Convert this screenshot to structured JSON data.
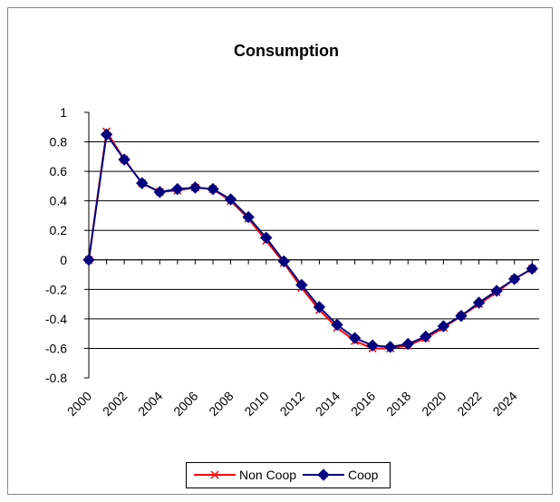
{
  "chart_data": {
    "type": "line",
    "title": "Consumption",
    "categories": [
      "2000",
      null,
      "2002",
      null,
      "2004",
      null,
      "2006",
      null,
      "2008",
      null,
      "2010",
      null,
      "2012",
      null,
      "2014",
      null,
      "2016",
      null,
      "2018",
      null,
      "2020",
      null,
      "2022",
      null,
      "2024",
      null
    ],
    "series": [
      {
        "name": "Non Coop",
        "color": "#ff0000",
        "marker": "x",
        "values": [
          0,
          0.87,
          0.68,
          0.52,
          0.46,
          0.47,
          0.49,
          0.48,
          0.4,
          0.28,
          0.13,
          -0.02,
          -0.19,
          -0.34,
          -0.46,
          -0.55,
          -0.6,
          -0.6,
          -0.58,
          -0.53,
          -0.46,
          -0.38,
          -0.3,
          -0.22,
          -0.13,
          -0.06
        ]
      },
      {
        "name": "Coop",
        "color": "#000080",
        "marker": "diamond",
        "values": [
          0,
          0.85,
          0.68,
          0.52,
          0.46,
          0.48,
          0.49,
          0.48,
          0.41,
          0.29,
          0.15,
          -0.01,
          -0.17,
          -0.32,
          -0.44,
          -0.53,
          -0.58,
          -0.59,
          -0.57,
          -0.52,
          -0.45,
          -0.38,
          -0.29,
          -0.21,
          -0.13,
          -0.06
        ]
      }
    ],
    "ylim": [
      -0.8,
      1
    ],
    "yticks": [
      -0.8,
      -0.6,
      -0.4,
      -0.2,
      0,
      0.2,
      0.4,
      0.6,
      0.8,
      1
    ],
    "grid": true,
    "legend": "bottom"
  }
}
